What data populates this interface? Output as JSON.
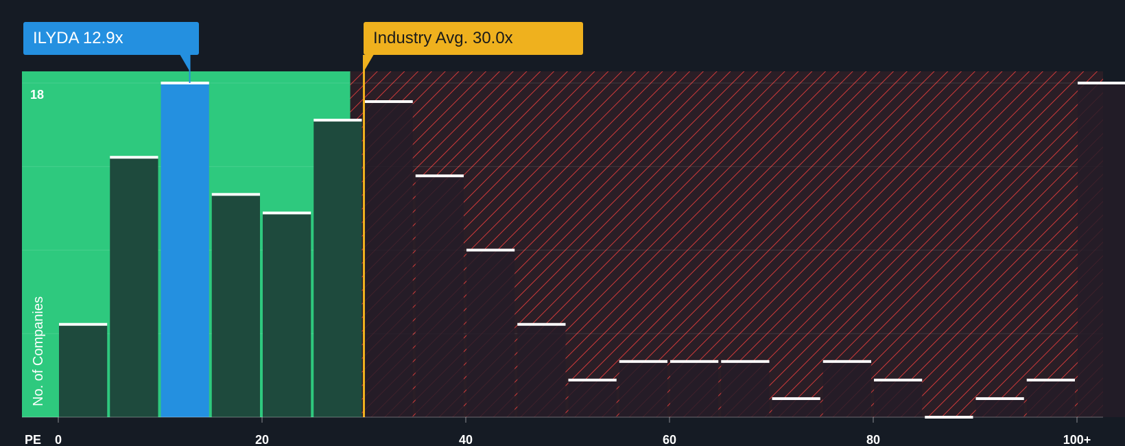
{
  "chart_data": {
    "type": "bar",
    "title": "",
    "xlabel": "PE",
    "ylabel": "No. of Companies",
    "x_ticks": [
      0,
      20,
      40,
      60,
      80,
      100
    ],
    "x_tick_labels": [
      "0",
      "20",
      "40",
      "60",
      "80",
      "100+"
    ],
    "x_range": [
      0,
      102.5
    ],
    "bin_width": 5,
    "ylim": [
      0,
      18
    ],
    "y_tick_label": "18",
    "bins": [
      {
        "start": 0,
        "value": 5
      },
      {
        "start": 5,
        "value": 14
      },
      {
        "start": 10,
        "value": 18
      },
      {
        "start": 15,
        "value": 12
      },
      {
        "start": 20,
        "value": 11
      },
      {
        "start": 25,
        "value": 16
      },
      {
        "start": 30,
        "value": 17
      },
      {
        "start": 35,
        "value": 13
      },
      {
        "start": 40,
        "value": 9
      },
      {
        "start": 45,
        "value": 5
      },
      {
        "start": 50,
        "value": 2
      },
      {
        "start": 55,
        "value": 3
      },
      {
        "start": 60,
        "value": 3
      },
      {
        "start": 65,
        "value": 3
      },
      {
        "start": 70,
        "value": 1
      },
      {
        "start": 75,
        "value": 3
      },
      {
        "start": 80,
        "value": 2
      },
      {
        "start": 85,
        "value": 0
      },
      {
        "start": 90,
        "value": 1
      },
      {
        "start": 95,
        "value": 2
      },
      {
        "start": 100,
        "value": 18
      }
    ],
    "company": {
      "ticker": "ILYDA",
      "pe": 12.9,
      "label": "ILYDA 12.9x",
      "bin_start": 10
    },
    "industry_avg": {
      "pe": 30.0,
      "label": "Industry Avg. 30.0x"
    },
    "colors": {
      "background": "#151b24",
      "undervalued_zone": "#2ec97e",
      "overvalued_zone": "#2a1e26",
      "hatch": "#d23a3a",
      "bar_in_green": "#1e4a3d",
      "bar_in_red": "#241c28",
      "company_bar": "#2490e0",
      "bar_cap": "#ffffff",
      "industry_line": "#efb11e"
    }
  }
}
